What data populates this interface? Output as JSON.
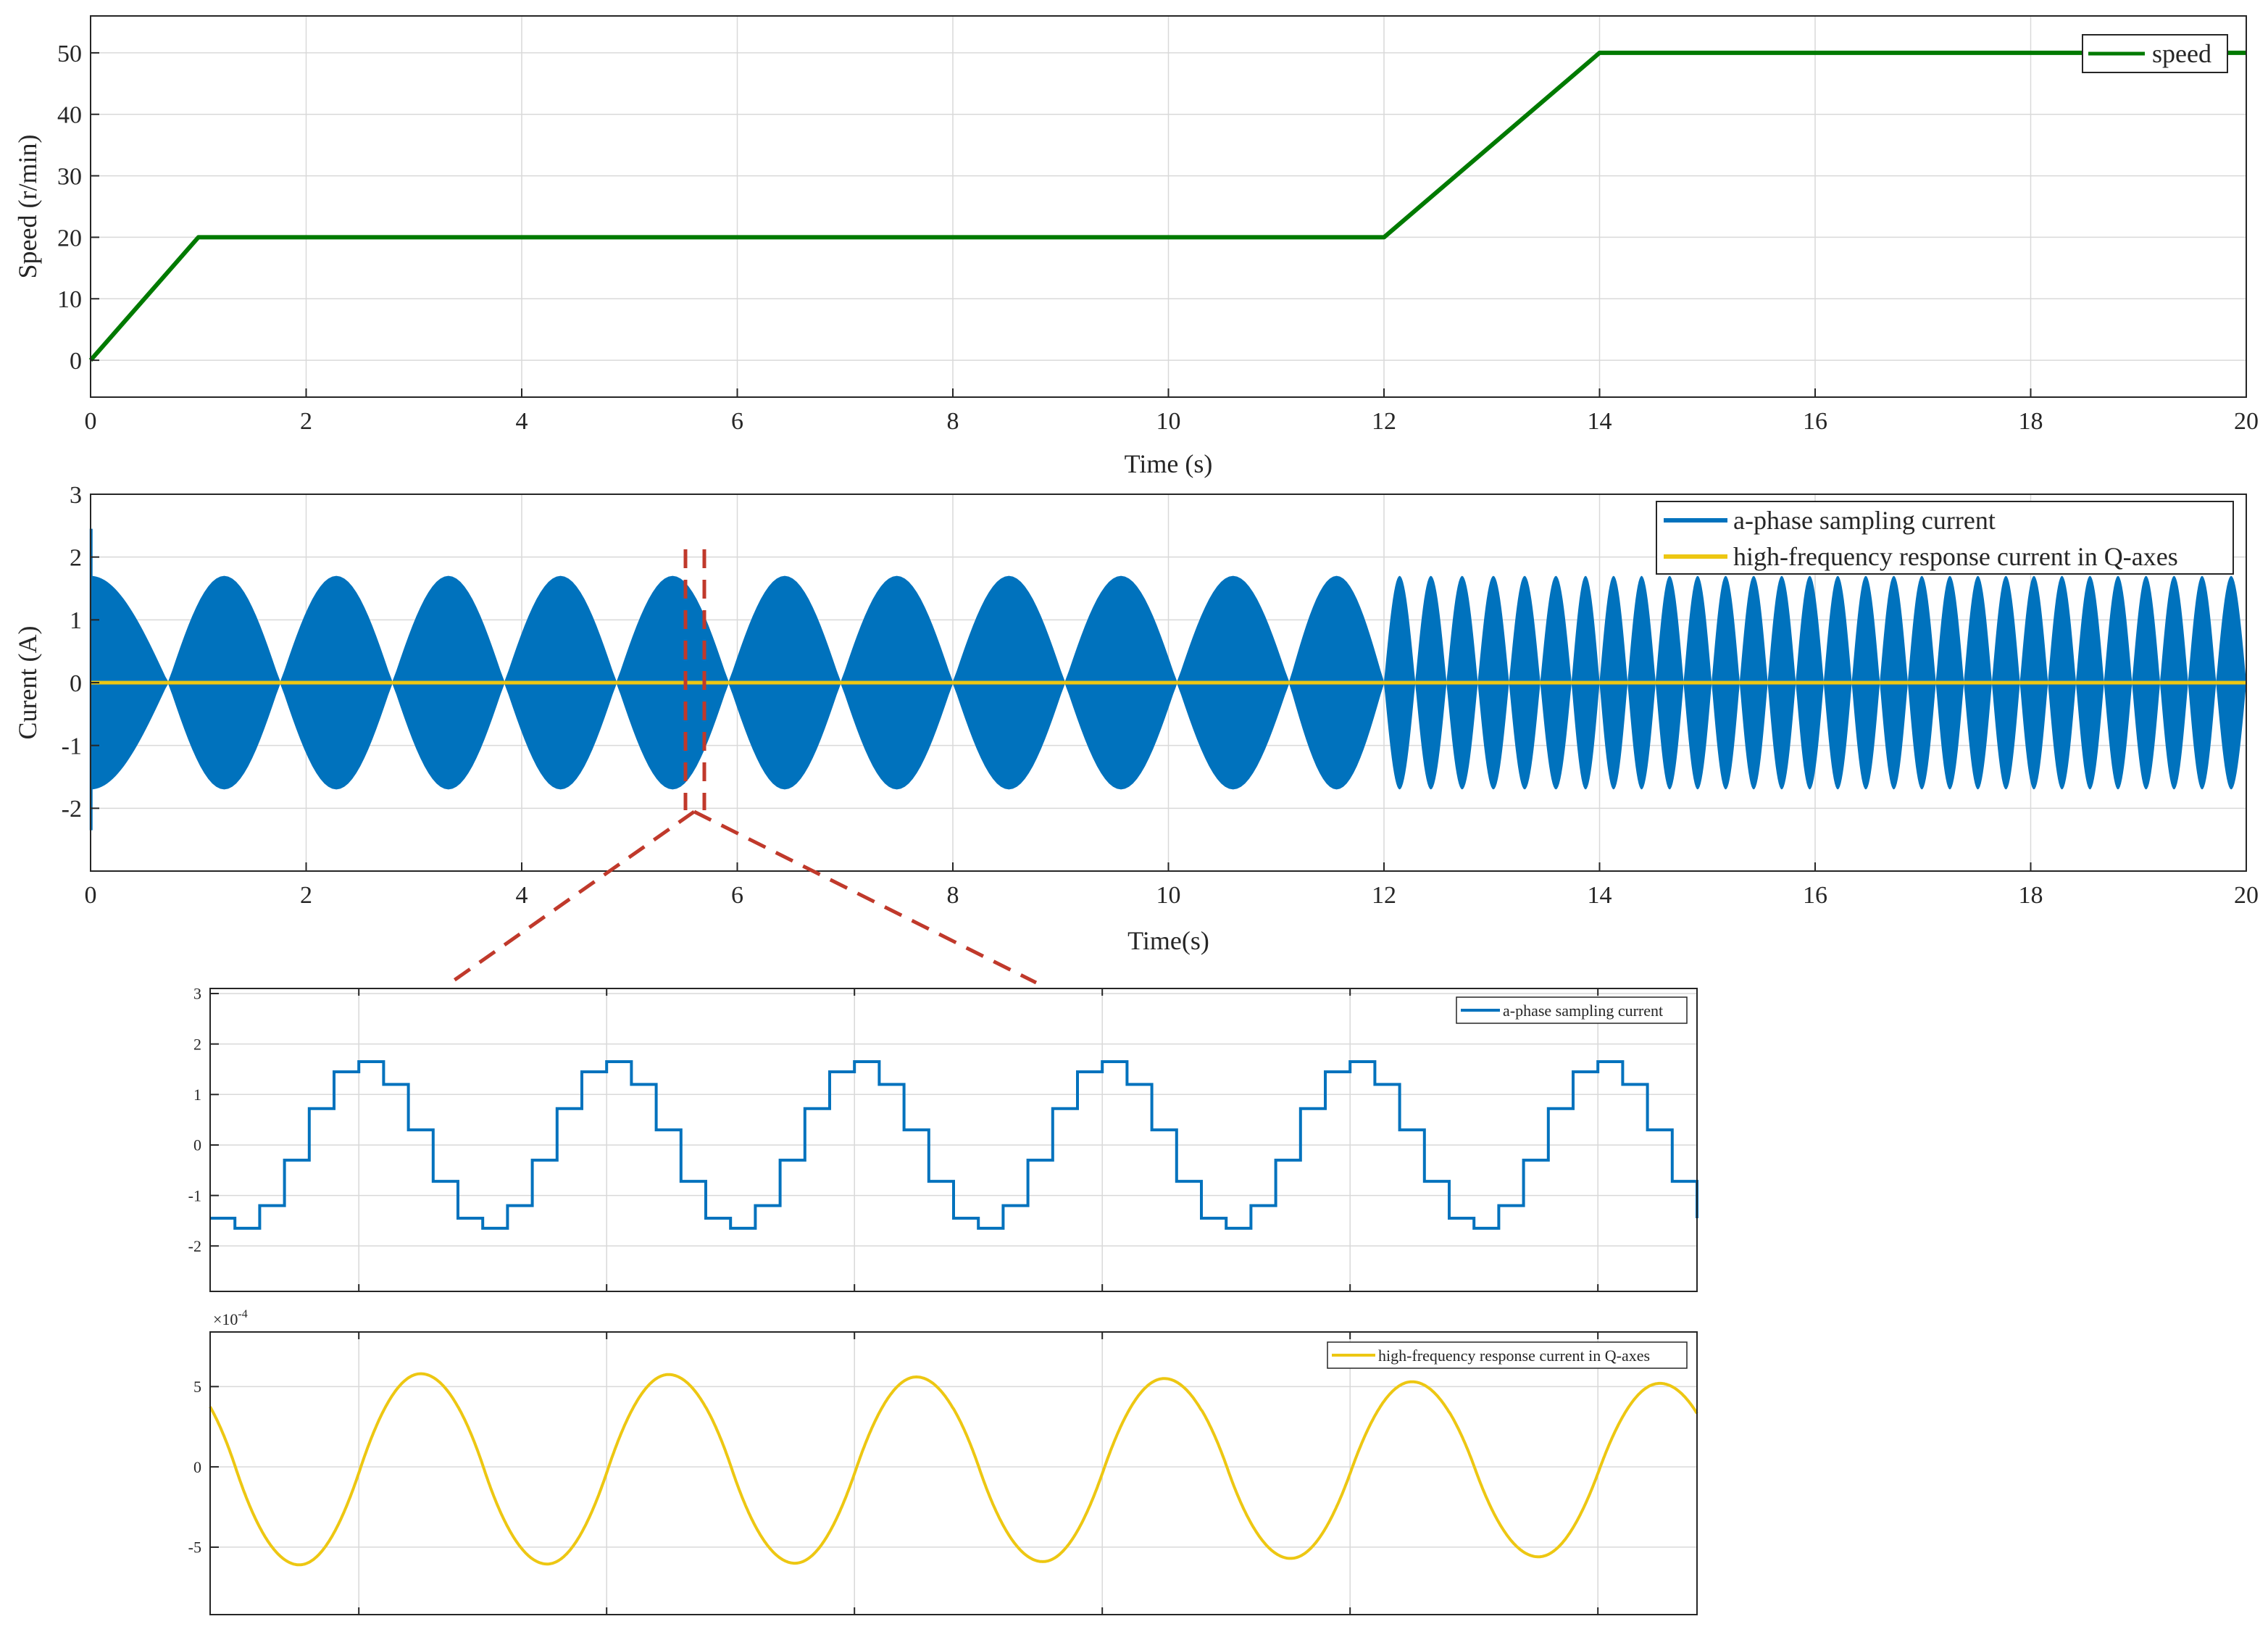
{
  "colors": {
    "speed": "#007A00",
    "phase": "#0072BD",
    "hf": "#EDC712",
    "zoom_marker": "#C0392B",
    "grid": "#D9D9D9",
    "axis": "#262626"
  },
  "chart_data": [
    {
      "type": "line",
      "xlabel": "Time (s)",
      "ylabel": "Speed (r/min)",
      "xlim": [
        0,
        20
      ],
      "ylim": [
        -6,
        56
      ],
      "xticks": [
        0,
        2,
        4,
        6,
        8,
        10,
        12,
        14,
        16,
        18,
        20
      ],
      "xtick_labels": [
        "0",
        "2",
        "4",
        "6",
        "8",
        "10",
        "12",
        "14",
        "16",
        "18",
        "20"
      ],
      "yticks": [
        0,
        10,
        20,
        30,
        40,
        50
      ],
      "ytick_labels": [
        "0",
        "10",
        "20",
        "30",
        "40",
        "50"
      ],
      "grid": true,
      "legend": "top-right",
      "series": [
        {
          "name": "speed",
          "x": [
            0,
            1,
            12,
            14,
            20
          ],
          "y": [
            0,
            20,
            20,
            50,
            50
          ]
        }
      ]
    },
    {
      "type": "line",
      "xlabel": "Time(s)",
      "ylabel": "Curent (A)",
      "xlim": [
        0,
        20
      ],
      "ylim": [
        -3,
        3
      ],
      "xticks": [
        0,
        2,
        4,
        6,
        8,
        10,
        12,
        14,
        16,
        18,
        20
      ],
      "xtick_labels": [
        "0",
        "2",
        "4",
        "6",
        "8",
        "10",
        "12",
        "14",
        "16",
        "18",
        "20"
      ],
      "yticks": [
        -2,
        -1,
        0,
        1,
        2,
        3
      ],
      "ytick_labels": [
        "-2",
        "-1",
        "0",
        "1",
        "2",
        "3"
      ],
      "grid": true,
      "legend": "top-right",
      "series": [
        {
          "name": "a-phase sampling current",
          "kind": "envelope",
          "amplitude": 1.7,
          "envelope_nodes_x": [
            0,
            0.72,
            1.76,
            2.8,
            3.84,
            4.88,
            5.92,
            6.96,
            8.0,
            9.04,
            10.08,
            11.12,
            12.0,
            12.29,
            12.58,
            12.87,
            13.16,
            13.45,
            13.74,
            14.0,
            14.26,
            14.52,
            14.78,
            15.04,
            15.3,
            15.56,
            15.82,
            16.08,
            16.34,
            16.6,
            16.86,
            17.12,
            17.38,
            17.64,
            17.9,
            18.16,
            18.42,
            18.68,
            18.94,
            19.2,
            19.46,
            19.72,
            20.0
          ]
        },
        {
          "name": "high-frequency response current in Q-axes",
          "y": [
            0,
            0
          ]
        }
      ]
    },
    {
      "type": "line",
      "yticks": [
        -2,
        -1,
        0,
        1,
        2,
        3
      ],
      "ytick_labels": [
        "-2",
        "-1",
        "0",
        "1",
        "2",
        "3"
      ],
      "ylim": [
        -2.9,
        3.1
      ],
      "xlim": [
        0,
        6
      ],
      "grid": true,
      "legend": "top-right",
      "series": [
        {
          "name": "a-phase sampling current",
          "period": 1,
          "phase_offset": 0.0,
          "step_levels": [
            -1.45,
            -1.65,
            -1.2,
            -0.3,
            0.72,
            1.45,
            1.65,
            1.2,
            0.3,
            -0.72,
            -1.45,
            -1.65
          ]
        }
      ]
    },
    {
      "type": "line",
      "exponent_label": "×10",
      "exponent_value": "-4",
      "yticks": [
        -5,
        0,
        5
      ],
      "ytick_labels": [
        "-5",
        "0",
        "5"
      ],
      "ylim": [
        -9.2,
        8.4
      ],
      "xlim": [
        0,
        6
      ],
      "grid": true,
      "legend": "top-right",
      "series": [
        {
          "name": "high-frequency response current in Q-axes",
          "period": 1,
          "first_peak_x": 0.85,
          "first_trough_x": 0.36,
          "peak": 5.8,
          "trough": -6.1
        }
      ]
    }
  ]
}
